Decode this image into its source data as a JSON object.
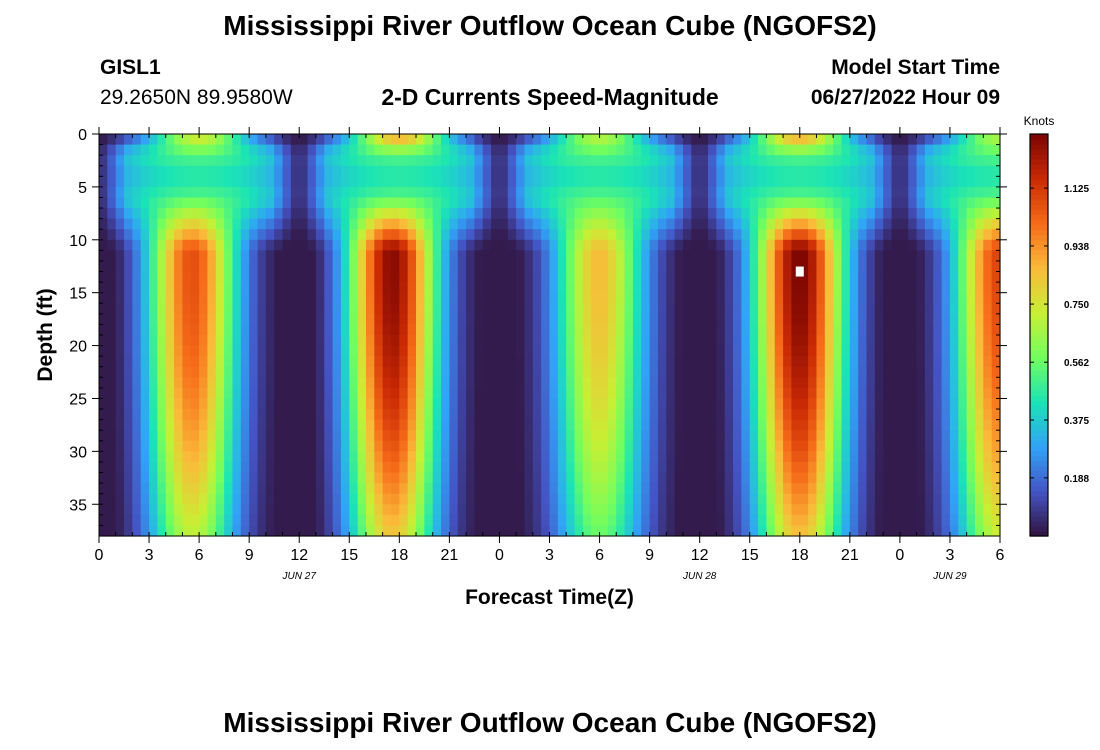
{
  "header": {
    "title": "Mississippi River Outflow Ocean Cube (NGOFS2)",
    "station": "GISL1",
    "coordinates": "29.2650N  89.9580W",
    "subtitle": "2-D Currents Speed-Magnitude",
    "model_start_label": "Model Start Time",
    "model_start_value": "06/27/2022 Hour 09"
  },
  "footer": {
    "repeat_title": "Mississippi River Outflow Ocean Cube (NGOFS2)"
  },
  "colors": {
    "background": "#ffffff",
    "missing_marker": "#ffffff",
    "colormap": [
      "#30123b",
      "#4454c4",
      "#31a3f7",
      "#1ae4b6",
      "#72fe5e",
      "#c8ef34",
      "#faba39",
      "#f66b19",
      "#cb2a04",
      "#7a0403"
    ]
  },
  "chart_data": {
    "type": "heatmap",
    "title": "2-D Currents Speed-Magnitude",
    "xlabel": "Forecast Time(Z)",
    "ylabel": "Depth (ft)",
    "x_hours_from_jun27_00z": [
      0,
      54
    ],
    "xticks": [
      0,
      3,
      6,
      9,
      12,
      15,
      18,
      21,
      24,
      27,
      30,
      33,
      36,
      39,
      42,
      45,
      48,
      51,
      54
    ],
    "xtick_labels": [
      "0",
      "3",
      "6",
      "9",
      "12",
      "15",
      "18",
      "21",
      "0",
      "3",
      "6",
      "9",
      "12",
      "15",
      "18",
      "21",
      "0",
      "3",
      "6"
    ],
    "date_labels": [
      {
        "hour": 12,
        "text": "JUN 27"
      },
      {
        "hour": 36,
        "text": "JUN 28"
      },
      {
        "hour": 51,
        "text": "JUN 29"
      }
    ],
    "ylim": [
      0,
      38
    ],
    "y_inverted": true,
    "yticks": [
      0,
      5,
      10,
      15,
      20,
      25,
      30,
      35
    ],
    "colorbar": {
      "label": "Knots",
      "range": [
        0,
        1.3
      ],
      "ticks": [
        0.188,
        0.375,
        0.562,
        0.75,
        0.938,
        1.125
      ],
      "tick_labels": [
        "0.188",
        "0.375",
        "0.562",
        "0.750",
        "0.938",
        "1.125"
      ]
    },
    "time_step_hours": 0.5,
    "depth_step_ft": 1,
    "surface_layer_bottom_ft": 9,
    "slack_minima_hours": [
      0,
      12,
      24,
      36,
      48
    ],
    "surface_maxima": [
      {
        "hour": 6,
        "knots": 0.78
      },
      {
        "hour": 18,
        "knots": 0.95
      },
      {
        "hour": 30,
        "knots": 0.72
      },
      {
        "hour": 42,
        "knots": 0.95
      },
      {
        "hour": 54,
        "knots": 0.7
      }
    ],
    "deep_maxima": [
      {
        "hour": 5.5,
        "knots": 1.08
      },
      {
        "hour": 17.5,
        "knots": 1.28
      },
      {
        "hour": 30,
        "knots": 0.86
      },
      {
        "hour": 42,
        "knots": 1.3
      },
      {
        "hour": 54,
        "knots": 1.1
      }
    ],
    "missing_cell": {
      "hour": 42,
      "depth_ft": 13
    }
  }
}
